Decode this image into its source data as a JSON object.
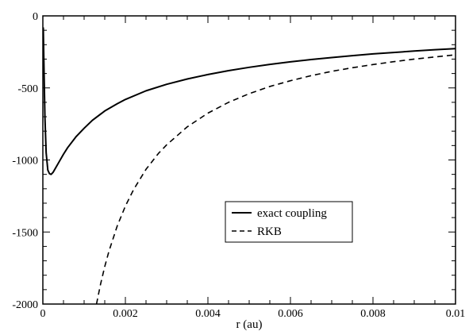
{
  "chart_data": {
    "type": "line",
    "xlabel": "r (au)",
    "ylabel": "",
    "xlim": [
      0,
      0.01
    ],
    "ylim": [
      -2000,
      0
    ],
    "x_ticks": [
      0,
      0.002,
      0.004,
      0.006,
      0.008,
      0.01
    ],
    "x_tick_labels": [
      "0",
      "0.002",
      "0.004",
      "0.006",
      "0.008",
      "0.01"
    ],
    "y_ticks": [
      0,
      -500,
      -1000,
      -1500,
      -2000
    ],
    "y_tick_labels": [
      "0",
      "-500",
      "-1000",
      "-1500",
      "-2000"
    ],
    "grid": false,
    "legend_position": "center-right",
    "series": [
      {
        "name": "exact coupling",
        "style": "solid",
        "color": "#000000",
        "x": [
          1e-05,
          3e-05,
          5e-05,
          8e-05,
          0.00012,
          0.00016,
          0.0002,
          0.00025,
          0.0003,
          0.0004,
          0.0005,
          0.0006,
          0.0008,
          0.001,
          0.0012,
          0.0015,
          0.0018,
          0.002,
          0.0025,
          0.003,
          0.0035,
          0.004,
          0.0045,
          0.005,
          0.0055,
          0.006,
          0.0065,
          0.007,
          0.0075,
          0.008,
          0.0085,
          0.009,
          0.0095,
          0.01
        ],
        "values": [
          -80,
          -400,
          -700,
          -950,
          -1070,
          -1095,
          -1100,
          -1085,
          -1060,
          -1010,
          -960,
          -915,
          -840,
          -780,
          -725,
          -660,
          -610,
          -580,
          -520,
          -475,
          -438,
          -407,
          -380,
          -357,
          -337,
          -319,
          -303,
          -289,
          -276,
          -264,
          -254,
          -244,
          -235,
          -227
        ]
      },
      {
        "name": "RKB",
        "style": "dashed",
        "color": "#000000",
        "x": [
          0.0013,
          0.0014,
          0.0015,
          0.0016,
          0.0018,
          0.002,
          0.0022,
          0.0025,
          0.0028,
          0.003,
          0.0035,
          0.004,
          0.0045,
          0.005,
          0.0055,
          0.006,
          0.0065,
          0.007,
          0.0075,
          0.008,
          0.0085,
          0.009,
          0.0095,
          0.01
        ],
        "values": [
          -2000,
          -1860,
          -1740,
          -1635,
          -1460,
          -1320,
          -1205,
          -1065,
          -955,
          -895,
          -770,
          -675,
          -600,
          -540,
          -490,
          -450,
          -415,
          -385,
          -360,
          -338,
          -318,
          -300,
          -285,
          -270
        ]
      }
    ]
  }
}
